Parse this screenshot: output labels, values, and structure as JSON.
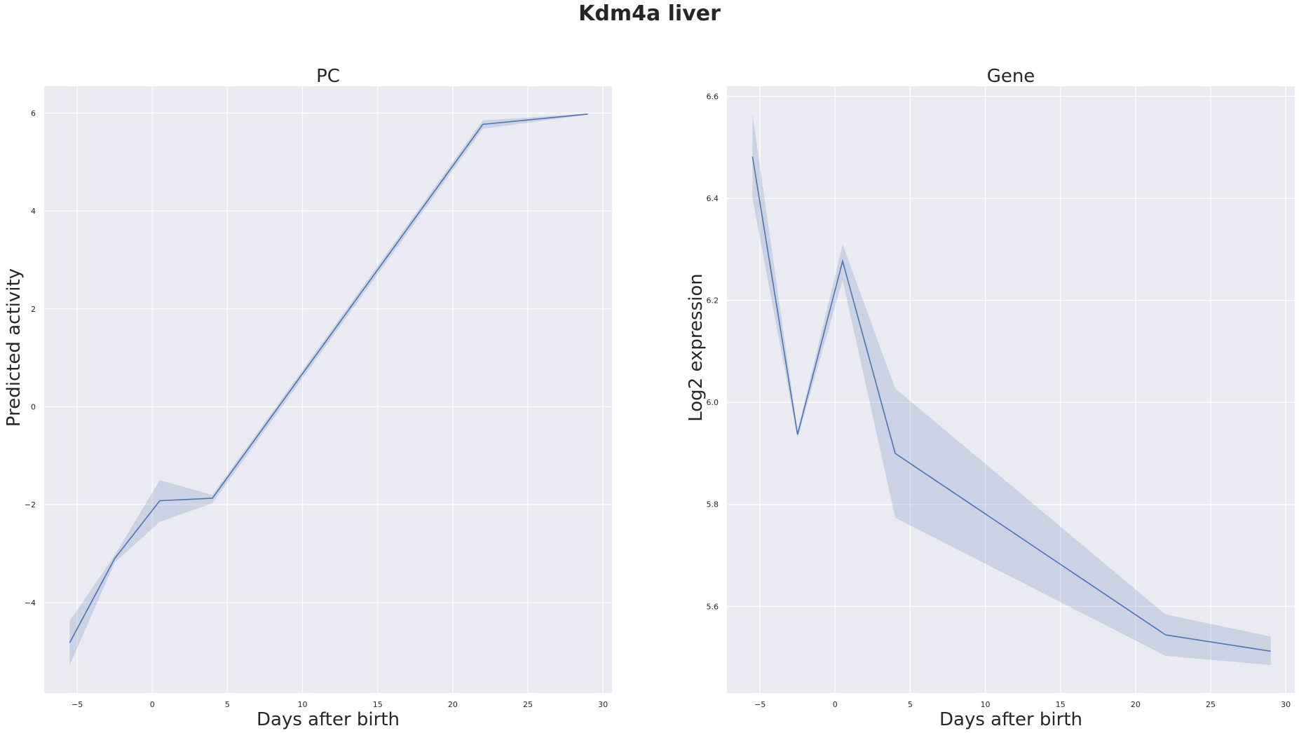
{
  "suptitle": "Kdm4a liver",
  "chart_data": [
    {
      "type": "line",
      "title": "PC",
      "xlabel": "Days after birth",
      "ylabel": "Predicted activity",
      "xlim": [
        -7.2,
        30.6
      ],
      "ylim": [
        -5.85,
        6.55
      ],
      "xticks": [
        -5,
        0,
        5,
        10,
        15,
        20,
        25,
        30
      ],
      "yticks": [
        -4,
        -2,
        0,
        2,
        4,
        6
      ],
      "xtick_labels": [
        "−5",
        "0",
        "5",
        "10",
        "15",
        "20",
        "25",
        "30"
      ],
      "ytick_labels": [
        "−4",
        "−2",
        "0",
        "2",
        "4",
        "6"
      ],
      "grid": true,
      "color": "#4c72b0",
      "band_color": "#4c72b0",
      "series": [
        {
          "x": [
            -5.5,
            -2.5,
            0.5,
            4,
            22,
            29
          ],
          "y": [
            -4.82,
            -3.1,
            -1.92,
            -1.87,
            5.77,
            5.98
          ],
          "lower": [
            -5.28,
            -3.18,
            -2.35,
            -1.97,
            5.68,
            5.97
          ],
          "upper": [
            -4.38,
            -3.03,
            -1.5,
            -1.8,
            5.85,
            5.99
          ]
        }
      ]
    },
    {
      "type": "line",
      "title": "Gene",
      "xlabel": "Days after birth",
      "ylabel": "Log2 expression",
      "xlim": [
        -7.2,
        30.6
      ],
      "ylim": [
        5.43,
        6.62
      ],
      "xticks": [
        -5,
        0,
        5,
        10,
        15,
        20,
        25,
        30
      ],
      "yticks": [
        5.6,
        5.8,
        6.0,
        6.2,
        6.4,
        6.6
      ],
      "xtick_labels": [
        "−5",
        "0",
        "5",
        "10",
        "15",
        "20",
        "25",
        "30"
      ],
      "ytick_labels": [
        "5.6",
        "5.8",
        "6.0",
        "6.2",
        "6.4",
        "6.6"
      ],
      "grid": true,
      "color": "#4c72b0",
      "band_color": "#4c72b0",
      "series": [
        {
          "x": [
            -5.5,
            -2.5,
            0.5,
            4,
            22,
            29
          ],
          "y": [
            6.482,
            5.937,
            6.277,
            5.9,
            5.544,
            5.512
          ],
          "lower": [
            6.4,
            5.93,
            6.24,
            5.774,
            5.503,
            5.485
          ],
          "upper": [
            6.565,
            5.944,
            6.31,
            6.027,
            5.584,
            5.541
          ]
        }
      ]
    }
  ]
}
